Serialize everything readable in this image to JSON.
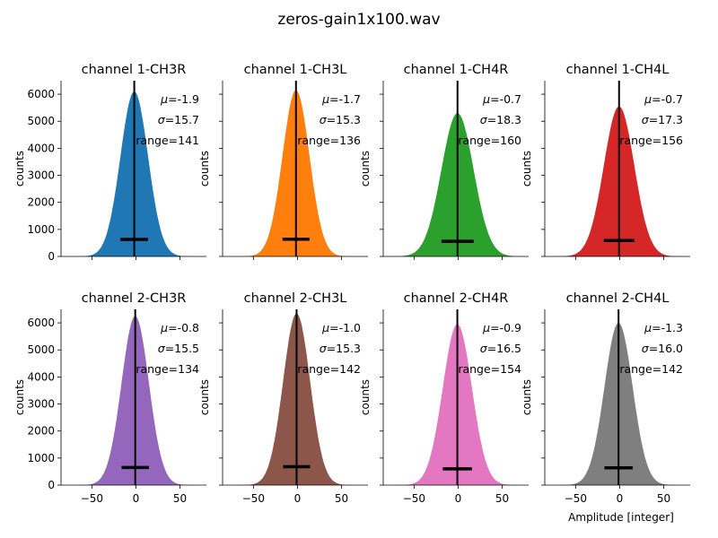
{
  "figure": {
    "title": "zeros-gain1x100.wav",
    "ylabel": "counts",
    "xlabel": "Amplitude [integer]"
  },
  "chart_data": [
    {
      "type": "area",
      "title": "channel 1-CH3R",
      "color": "#1f77b4",
      "mu": "-1.9",
      "sigma": "15.7",
      "range": "141",
      "peak": 6100,
      "std": 15.7,
      "mean": -1.9,
      "hbar_y": 630,
      "xlim": [
        -85,
        80
      ],
      "ylim": [
        0,
        6500
      ],
      "xticks": [
        -50,
        0,
        50
      ],
      "yticks": [
        0,
        1000,
        2000,
        3000,
        4000,
        5000,
        6000
      ],
      "show_xticklabels": false,
      "show_yticklabels": true,
      "ylabel": "counts",
      "xlabel": ""
    },
    {
      "type": "area",
      "title": "channel 1-CH3L",
      "color": "#ff7f0e",
      "mu": "-1.7",
      "sigma": "15.3",
      "range": "136",
      "peak": 6150,
      "std": 15.3,
      "mean": -1.7,
      "hbar_y": 640,
      "xlim": [
        -85,
        80
      ],
      "ylim": [
        0,
        6500
      ],
      "xticks": [
        -50,
        0,
        50
      ],
      "yticks": [
        0,
        1000,
        2000,
        3000,
        4000,
        5000,
        6000
      ],
      "show_xticklabels": false,
      "show_yticklabels": false,
      "ylabel": "counts",
      "xlabel": ""
    },
    {
      "type": "area",
      "title": "channel 1-CH4R",
      "color": "#2ca02c",
      "mu": "-0.7",
      "sigma": "18.3",
      "range": "160",
      "peak": 5300,
      "std": 18.3,
      "mean": -0.7,
      "hbar_y": 560,
      "xlim": [
        -85,
        80
      ],
      "ylim": [
        0,
        6500
      ],
      "xticks": [
        -50,
        0,
        50
      ],
      "yticks": [
        0,
        1000,
        2000,
        3000,
        4000,
        5000,
        6000
      ],
      "show_xticklabels": false,
      "show_yticklabels": false,
      "ylabel": "counts",
      "xlabel": ""
    },
    {
      "type": "area",
      "title": "channel 1-CH4L",
      "color": "#d62728",
      "mu": "-0.7",
      "sigma": "17.3",
      "range": "156",
      "peak": 5550,
      "std": 17.3,
      "mean": -0.7,
      "hbar_y": 590,
      "xlim": [
        -85,
        80
      ],
      "ylim": [
        0,
        6500
      ],
      "xticks": [
        -50,
        0,
        50
      ],
      "yticks": [
        0,
        1000,
        2000,
        3000,
        4000,
        5000,
        6000
      ],
      "show_xticklabels": false,
      "show_yticklabels": false,
      "ylabel": "counts",
      "xlabel": ""
    },
    {
      "type": "area",
      "title": "channel 2-CH3R",
      "color": "#9467bd",
      "mu": "-0.8",
      "sigma": "15.5",
      "range": "134",
      "peak": 6250,
      "std": 15.5,
      "mean": -0.8,
      "hbar_y": 650,
      "xlim": [
        -85,
        80
      ],
      "ylim": [
        0,
        6500
      ],
      "xticks": [
        -50,
        0,
        50
      ],
      "yticks": [
        0,
        1000,
        2000,
        3000,
        4000,
        5000,
        6000
      ],
      "show_xticklabels": true,
      "show_yticklabels": true,
      "ylabel": "counts",
      "xlabel": ""
    },
    {
      "type": "area",
      "title": "channel 2-CH3L",
      "color": "#8c564b",
      "mu": "-1.0",
      "sigma": "15.3",
      "range": "142",
      "peak": 6350,
      "std": 15.3,
      "mean": -1.0,
      "hbar_y": 680,
      "xlim": [
        -85,
        80
      ],
      "ylim": [
        0,
        6500
      ],
      "xticks": [
        -50,
        0,
        50
      ],
      "yticks": [
        0,
        1000,
        2000,
        3000,
        4000,
        5000,
        6000
      ],
      "show_xticklabels": true,
      "show_yticklabels": false,
      "ylabel": "counts",
      "xlabel": ""
    },
    {
      "type": "area",
      "title": "channel 2-CH4R",
      "color": "#e377c2",
      "mu": "-0.9",
      "sigma": "16.5",
      "range": "154",
      "peak": 5950,
      "std": 16.5,
      "mean": -0.9,
      "hbar_y": 600,
      "xlim": [
        -85,
        80
      ],
      "ylim": [
        0,
        6500
      ],
      "xticks": [
        -50,
        0,
        50
      ],
      "yticks": [
        0,
        1000,
        2000,
        3000,
        4000,
        5000,
        6000
      ],
      "show_xticklabels": true,
      "show_yticklabels": false,
      "ylabel": "counts",
      "xlabel": ""
    },
    {
      "type": "area",
      "title": "channel 2-CH4L",
      "color": "#7f7f7f",
      "mu": "-1.3",
      "sigma": "16.0",
      "range": "142",
      "peak": 6000,
      "std": 16.0,
      "mean": -1.3,
      "hbar_y": 640,
      "xlim": [
        -85,
        80
      ],
      "ylim": [
        0,
        6500
      ],
      "xticks": [
        -50,
        0,
        50
      ],
      "yticks": [
        0,
        1000,
        2000,
        3000,
        4000,
        5000,
        6000
      ],
      "show_xticklabels": true,
      "show_yticklabels": false,
      "ylabel": "counts",
      "xlabel": "Amplitude [integer]"
    }
  ]
}
